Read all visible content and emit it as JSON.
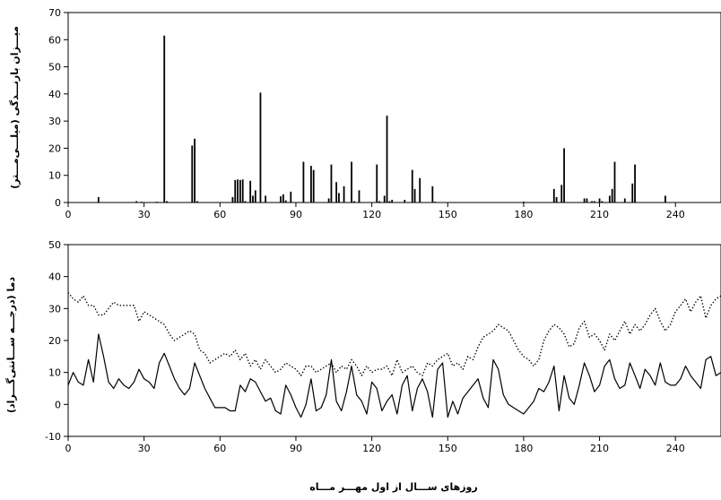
{
  "chart_data": [
    {
      "type": "bar",
      "ylabel": "میـــزان بارنـــدگی (میلـــی‌مـــتر)",
      "xlim": [
        0,
        258
      ],
      "ylim": [
        0,
        70
      ],
      "xticks": [
        0,
        30,
        60,
        90,
        120,
        150,
        180,
        210,
        240
      ],
      "yticks": [
        0,
        10,
        20,
        30,
        40,
        50,
        60,
        70
      ],
      "grid": false,
      "x": [
        12,
        27,
        29,
        35,
        38,
        39,
        49,
        50,
        51,
        65,
        66,
        67,
        68,
        69,
        70,
        72,
        73,
        74,
        76,
        78,
        84,
        85,
        86,
        88,
        93,
        96,
        97,
        103,
        104,
        106,
        107,
        109,
        112,
        113,
        115,
        122,
        123,
        125,
        126,
        127,
        128,
        133,
        136,
        137,
        139,
        144,
        145,
        180,
        192,
        193,
        195,
        196,
        204,
        205,
        207,
        208,
        210,
        211,
        214,
        215,
        216,
        220,
        223,
        224,
        236
      ],
      "values": [
        2,
        0.5,
        0.3,
        0.3,
        61.5,
        0.5,
        21,
        23.5,
        0.5,
        2,
        8.3,
        8.5,
        8.3,
        8.5,
        0.5,
        8,
        2.5,
        4.5,
        40.5,
        2.5,
        2.3,
        3,
        0.8,
        4,
        15,
        13.5,
        12,
        1.5,
        14,
        7.5,
        3.5,
        6,
        15,
        0.5,
        4.5,
        14,
        0.5,
        2.5,
        32,
        0.5,
        1,
        1,
        12,
        5,
        9,
        6,
        0.3,
        0.3,
        5,
        2,
        6.5,
        20,
        1.5,
        1.5,
        0.5,
        0.5,
        1.5,
        0.5,
        2.5,
        5,
        15,
        1.5,
        7,
        14,
        2.5
      ]
    },
    {
      "type": "line",
      "ylabel": "دما (درجـــه ســـانتی‌گـــراد)",
      "xlabel": "روزهای ســـال از اول مهـــر مـــاه",
      "xlim": [
        0,
        258
      ],
      "ylim": [
        -10,
        50
      ],
      "xticks": [
        0,
        30,
        60,
        90,
        120,
        150,
        180,
        210,
        240
      ],
      "yticks": [
        -10,
        0,
        10,
        20,
        30,
        40,
        50
      ],
      "grid": false,
      "series": [
        {
          "style": "dotted",
          "x": [
            0,
            2,
            4,
            6,
            8,
            10,
            12,
            14,
            16,
            18,
            20,
            22,
            24,
            26,
            28,
            30,
            32,
            34,
            36,
            38,
            40,
            42,
            44,
            46,
            48,
            50,
            52,
            54,
            56,
            58,
            60,
            62,
            64,
            66,
            68,
            70,
            72,
            74,
            76,
            78,
            80,
            82,
            84,
            86,
            88,
            90,
            92,
            94,
            96,
            98,
            100,
            102,
            104,
            106,
            108,
            110,
            112,
            114,
            116,
            118,
            120,
            122,
            124,
            126,
            128,
            130,
            132,
            134,
            136,
            138,
            140,
            142,
            144,
            146,
            148,
            150,
            152,
            154,
            156,
            158,
            160,
            162,
            164,
            166,
            168,
            170,
            172,
            174,
            176,
            178,
            180,
            182,
            184,
            186,
            188,
            190,
            192,
            194,
            196,
            198,
            200,
            202,
            204,
            206,
            208,
            210,
            212,
            214,
            216,
            218,
            220,
            222,
            224,
            226,
            228,
            230,
            232,
            234,
            236,
            238,
            240,
            242,
            244,
            246,
            248,
            250,
            252,
            254,
            256,
            258
          ],
          "values": [
            35,
            33,
            32,
            34,
            31,
            31,
            28,
            28,
            30,
            32,
            31,
            31,
            31,
            31,
            26,
            29,
            28,
            27,
            26,
            25,
            22,
            20,
            21,
            22,
            23,
            22,
            17,
            16,
            13,
            14,
            15,
            16,
            15,
            17,
            14,
            16,
            12,
            14,
            11,
            14,
            12,
            10,
            11,
            13,
            12,
            11,
            9,
            12,
            12,
            10,
            11,
            12,
            13,
            10,
            12,
            11,
            14,
            12,
            9,
            12,
            10,
            11,
            11,
            12,
            9,
            14,
            10,
            11,
            12,
            10,
            9,
            13,
            12,
            14,
            15,
            16,
            12,
            13,
            11,
            15,
            14,
            18,
            21,
            22,
            23,
            25,
            24,
            23,
            20,
            17,
            15,
            14,
            12,
            14,
            20,
            23,
            25,
            24,
            22,
            18,
            19,
            24,
            26,
            21,
            22,
            20,
            17,
            22,
            20,
            23,
            26,
            22,
            25,
            23,
            25,
            28,
            30,
            26,
            23,
            25,
            29,
            31,
            33,
            29,
            32,
            34,
            27,
            31,
            33,
            34
          ]
        },
        {
          "style": "solid",
          "x": [
            0,
            2,
            4,
            6,
            8,
            10,
            12,
            14,
            16,
            18,
            20,
            22,
            24,
            26,
            28,
            30,
            32,
            34,
            36,
            38,
            40,
            42,
            44,
            46,
            48,
            50,
            52,
            54,
            56,
            58,
            60,
            62,
            64,
            66,
            68,
            70,
            72,
            74,
            76,
            78,
            80,
            82,
            84,
            86,
            88,
            90,
            92,
            94,
            96,
            98,
            100,
            102,
            104,
            106,
            108,
            110,
            112,
            114,
            116,
            118,
            120,
            122,
            124,
            126,
            128,
            130,
            132,
            134,
            136,
            138,
            140,
            142,
            144,
            146,
            148,
            150,
            152,
            154,
            156,
            158,
            160,
            162,
            164,
            166,
            168,
            170,
            172,
            174,
            176,
            178,
            180,
            182,
            184,
            186,
            188,
            190,
            192,
            194,
            196,
            198,
            200,
            202,
            204,
            206,
            208,
            210,
            212,
            214,
            216,
            218,
            220,
            222,
            224,
            226,
            228,
            230,
            232,
            234,
            236,
            238,
            240,
            242,
            244,
            246,
            248,
            250,
            252,
            254,
            256,
            258
          ],
          "values": [
            6,
            10,
            7,
            6,
            14,
            7,
            22,
            15,
            7,
            5,
            8,
            6,
            5,
            7,
            11,
            8,
            7,
            5,
            13,
            16,
            12,
            8,
            5,
            3,
            5,
            13,
            9,
            5,
            2,
            -1,
            -1,
            -1,
            -2,
            -2,
            6,
            4,
            8,
            7,
            4,
            1,
            2,
            -2,
            -3,
            6,
            3,
            -1,
            -4,
            0,
            8,
            -2,
            -1,
            3,
            14,
            1,
            -2,
            4,
            12,
            3,
            1,
            -3,
            7,
            5,
            -2,
            1,
            3,
            -3,
            6,
            9,
            -2,
            5,
            8,
            4,
            -4,
            11,
            13,
            -4,
            1,
            -3,
            2,
            4,
            6,
            8,
            2,
            -1,
            14,
            11,
            3,
            0,
            -1,
            -2,
            -3,
            -1,
            1,
            5,
            4,
            7,
            12,
            -2,
            9,
            2,
            0,
            6,
            13,
            9,
            4,
            6,
            12,
            14,
            8,
            5,
            6,
            13,
            9,
            5,
            11,
            9,
            6,
            13,
            7,
            6,
            6,
            8,
            12,
            9,
            7,
            5,
            14,
            15,
            9,
            10
          ]
        }
      ]
    }
  ]
}
